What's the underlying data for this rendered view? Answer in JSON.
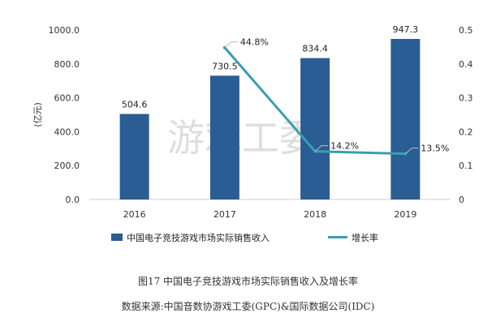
{
  "caption": {
    "title": "图17  中国电子竞技游戏市场实际销售收入及增长率",
    "source": "数据来源:中国音数协游戏工委(GPC)&国际数据公司(IDC)"
  },
  "watermark": "游戏工委",
  "chart_data": {
    "type": "bar",
    "title": "",
    "xlabel": "",
    "categories": [
      "2016",
      "2017",
      "2018",
      "2019"
    ],
    "y_left": {
      "label": "(亿元)",
      "range": [
        0,
        1000
      ],
      "ticks": [
        "0.0",
        "200.0",
        "400.0",
        "600.0",
        "800.0",
        "1000.0"
      ]
    },
    "y_right": {
      "label": "",
      "range": [
        0,
        0.5
      ],
      "ticks": [
        "0",
        "0.1",
        "0.2",
        "0.3",
        "0.4",
        "0.5"
      ]
    },
    "series": [
      {
        "name": "中国电子竞技游戏市场实际销售收入",
        "kind": "bar",
        "axis": "left",
        "color": "#2a5d94",
        "values": [
          504.6,
          730.5,
          834.4,
          947.3
        ],
        "labels": [
          "504.6",
          "730.5",
          "834.4",
          "947.3"
        ]
      },
      {
        "name": "增长率",
        "kind": "line",
        "axis": "right",
        "color": "#3a9eaf",
        "values": [
          null,
          0.448,
          0.142,
          0.135
        ],
        "labels": [
          "",
          "44.8%",
          "14.2%",
          "13.5%"
        ]
      }
    ],
    "grid": false,
    "legend_position": "bottom"
  }
}
